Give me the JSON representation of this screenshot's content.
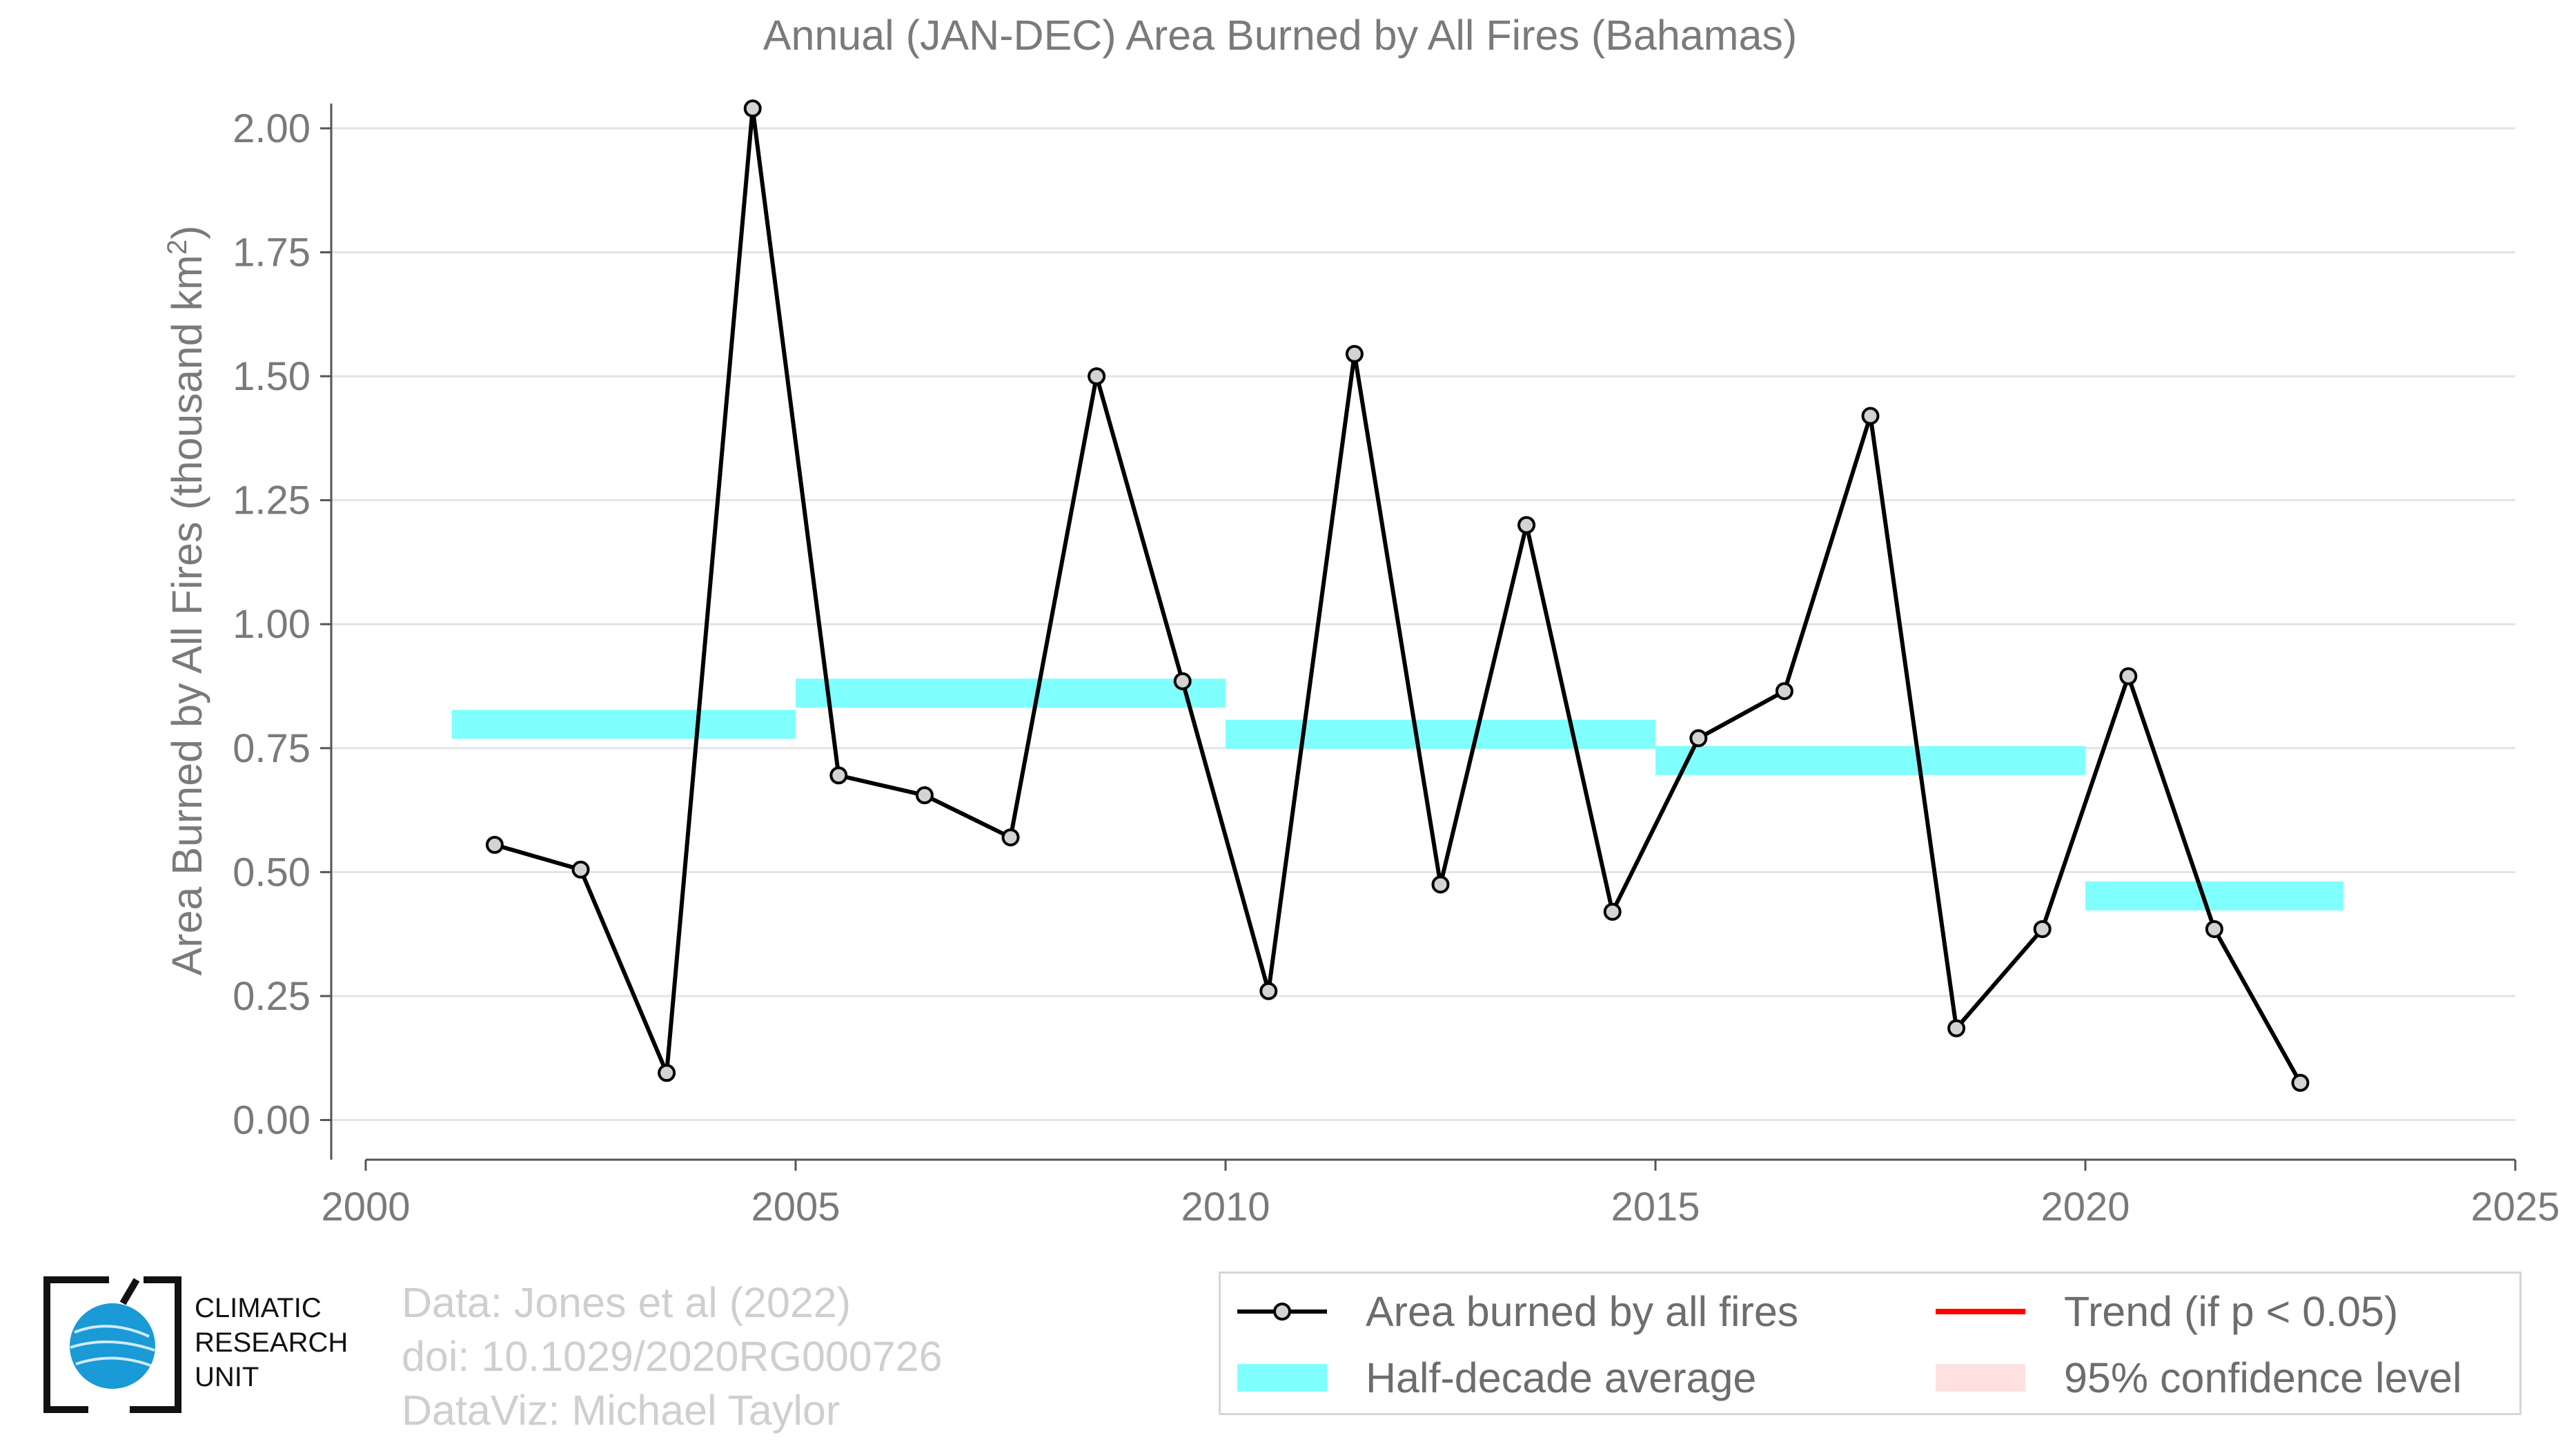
{
  "chart_data": {
    "type": "line",
    "title": "Annual (JAN-DEC) Area Burned by All Fires (Bahamas)",
    "xlabel": "",
    "ylabel": "Area Burned by All Fires (thousand km",
    "ylabel_sup": "2",
    "ylabel_close": ")",
    "xlim": [
      2000,
      2025
    ],
    "ylim": [
      -0.08,
      2.05
    ],
    "x_ticks": [
      2000,
      2005,
      2010,
      2015,
      2020,
      2025
    ],
    "x_tick_labels": [
      "2000",
      "2005",
      "2010",
      "2015",
      "2020",
      "2025"
    ],
    "y_ticks": [
      0.0,
      0.25,
      0.5,
      0.75,
      1.0,
      1.25,
      1.5,
      1.75,
      2.0
    ],
    "y_tick_labels": [
      "0.00",
      "0.25",
      "0.50",
      "0.75",
      "1.00",
      "1.25",
      "1.50",
      "1.75",
      "2.00"
    ],
    "grid": true,
    "legend_position": "bottom-right",
    "series": [
      {
        "name": "Area burned by all fires",
        "color": "#000000",
        "marker_color": "#d3d3d3",
        "x": [
          2001.5,
          2002.5,
          2003.5,
          2004.5,
          2005.5,
          2006.5,
          2007.5,
          2008.5,
          2009.5,
          2010.5,
          2011.5,
          2012.5,
          2013.5,
          2014.5,
          2015.5,
          2016.5,
          2017.5,
          2018.5,
          2019.5,
          2020.5,
          2021.5,
          2022.5
        ],
        "y": [
          0.555,
          0.505,
          0.095,
          2.04,
          0.695,
          0.655,
          0.57,
          1.5,
          0.885,
          0.26,
          1.545,
          0.475,
          1.2,
          0.42,
          0.77,
          0.865,
          1.42,
          0.185,
          0.385,
          0.895,
          0.385,
          0.075
        ]
      }
    ],
    "half_decade_average": {
      "name": "Half-decade average",
      "color": "#80ffff",
      "segments": [
        {
          "x0": 2001,
          "x1": 2005,
          "y": 0.798
        },
        {
          "x0": 2005,
          "x1": 2010,
          "y": 0.861
        },
        {
          "x0": 2010,
          "x1": 2015,
          "y": 0.778
        },
        {
          "x0": 2015,
          "x1": 2020,
          "y": 0.725
        },
        {
          "x0": 2020,
          "x1": 2023,
          "y": 0.452
        }
      ]
    },
    "legend": [
      {
        "label": "Area burned by all fires",
        "kind": "line-marker",
        "color": "#000000"
      },
      {
        "label": "Trend (if p < 0.05)",
        "kind": "line",
        "color": "#ff0000"
      },
      {
        "label": "Half-decade average",
        "kind": "band",
        "color": "#80ffff"
      },
      {
        "label": "95% confidence level",
        "kind": "band",
        "color": "#ffe0e0"
      }
    ]
  },
  "credits": {
    "line1": "Data: Jones et al (2022)",
    "line2": "doi: 10.1029/2020RG000726",
    "line3": "DataViz: Michael Taylor"
  },
  "logo": {
    "line1": "CLIMATIC",
    "line2": "RESEARCH",
    "line3": "UNIT",
    "globe_color": "#1a9ad6"
  }
}
